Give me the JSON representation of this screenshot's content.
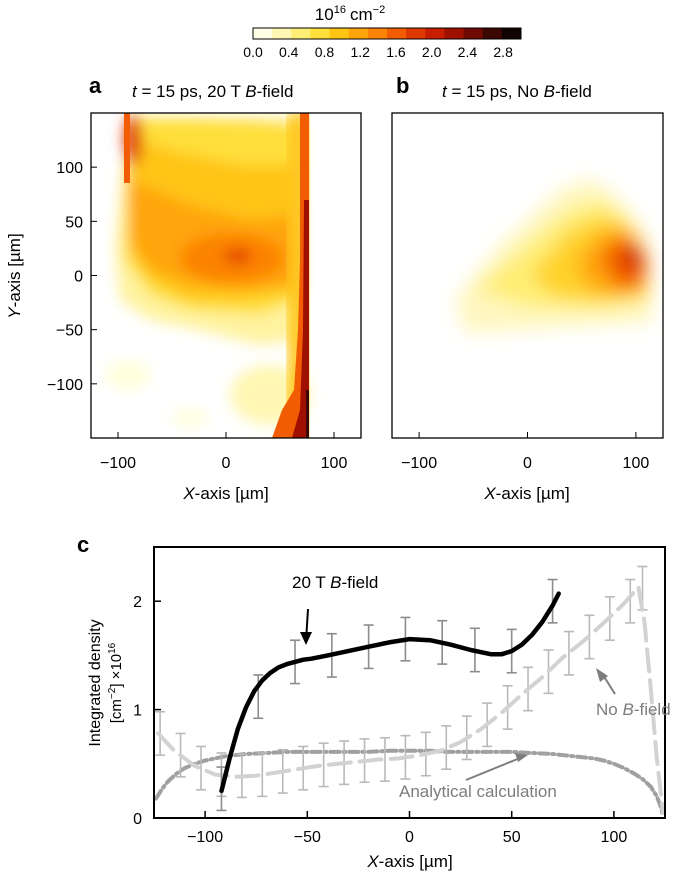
{
  "colorbar": {
    "title_base": "10",
    "title_exp": "16",
    "title_unit": "cm",
    "title_unit_exp": "−2",
    "ticks": [
      "0.0",
      "0.4",
      "0.8",
      "1.2",
      "1.6",
      "2.0",
      "2.4",
      "2.8"
    ],
    "range": [
      0.0,
      3.0
    ],
    "colors": [
      "#ffffe6",
      "#fff7b3",
      "#ffee75",
      "#ffdf3a",
      "#ffc414",
      "#ffa50a",
      "#fb8306",
      "#f25d03",
      "#e03802",
      "#c81d00",
      "#a01000",
      "#6e0a02",
      "#3a0703",
      "#0f0403"
    ]
  },
  "chart_data": [
    {
      "type": "heatmap",
      "panel_label": "a",
      "title_t": "t",
      "title_mid": " = 15 ps, 20 T ",
      "title_b": "B",
      "title_end": "-field",
      "xlabel_var": "X",
      "xlabel_unit": "-axis [µm]",
      "ylabel_var": "Y",
      "ylabel_unit": "-axis [µm]",
      "xlim": [
        -125,
        125
      ],
      "ylim": [
        -150,
        150
      ],
      "xticks": [
        "−100",
        "0",
        "100"
      ],
      "yticks": [
        "100",
        "50",
        "0",
        "−50",
        "−100"
      ],
      "plasma_x_extent": [
        -92,
        72
      ],
      "peak_density_point": [
        10,
        20
      ]
    },
    {
      "type": "heatmap",
      "panel_label": "b",
      "title_t": "t",
      "title_mid": " = 15 ps, No ",
      "title_b": "B",
      "title_end": "-field",
      "xlabel_var": "X",
      "xlabel_unit": "-axis [µm]",
      "xlim": [
        -125,
        125
      ],
      "ylim": [
        -150,
        150
      ],
      "xticks": [
        "−100",
        "0",
        "100"
      ],
      "peak_density_point": [
        95,
        20
      ]
    },
    {
      "type": "line",
      "panel_label": "c",
      "xlabel_var": "X",
      "xlabel_unit": "-axis [µm]",
      "ylabel_line1": "Integrated density",
      "ylabel_line2": "[cm",
      "ylabel_line2_exp": "−2",
      "ylabel_line2_end": "] ×10",
      "ylabel_line2_exp2": "16",
      "xlim": [
        -125,
        125
      ],
      "ylim": [
        0,
        2.5
      ],
      "xticks": [
        "−100",
        "−50",
        "0",
        "50",
        "100"
      ],
      "yticks": [
        "0",
        "1",
        "2"
      ],
      "series": [
        {
          "name": "20 T B-field",
          "annotation_mid": "20 T ",
          "annotation_b": "B",
          "annotation_end": "-field",
          "color": "#000000",
          "x": [
            -92,
            -88,
            -84,
            -80,
            -76,
            -72,
            -68,
            -64,
            -60,
            -56,
            -52,
            -48,
            -40,
            -30,
            -20,
            -10,
            0,
            10,
            20,
            30,
            40,
            45,
            50,
            55,
            60,
            65,
            70,
            73
          ],
          "y": [
            0.25,
            0.55,
            0.82,
            1.02,
            1.17,
            1.27,
            1.34,
            1.39,
            1.42,
            1.44,
            1.46,
            1.47,
            1.5,
            1.54,
            1.58,
            1.62,
            1.65,
            1.64,
            1.6,
            1.55,
            1.51,
            1.51,
            1.54,
            1.6,
            1.69,
            1.81,
            1.96,
            2.07
          ],
          "err_x": [
            -92,
            -74,
            -56,
            -38,
            -20,
            -2,
            16,
            32,
            50,
            70
          ],
          "err_y": [
            0.27,
            1.12,
            1.44,
            1.5,
            1.58,
            1.65,
            1.62,
            1.55,
            1.54,
            2.0
          ],
          "err": 0.2
        },
        {
          "name": "No B-field",
          "annotation_mid": "No ",
          "annotation_b": "B",
          "annotation_end": "-field",
          "color": "#d2d2d2",
          "x": [
            -123,
            -115,
            -105,
            -95,
            -85,
            -75,
            -65,
            -55,
            -45,
            -35,
            -25,
            -15,
            -5,
            5,
            15,
            25,
            35,
            45,
            55,
            65,
            75,
            85,
            95,
            105,
            112,
            115,
            118,
            121,
            124
          ],
          "y": [
            0.78,
            0.62,
            0.48,
            0.4,
            0.38,
            0.39,
            0.42,
            0.45,
            0.48,
            0.5,
            0.52,
            0.54,
            0.55,
            0.58,
            0.62,
            0.7,
            0.82,
            0.97,
            1.14,
            1.3,
            1.48,
            1.63,
            1.8,
            1.98,
            2.13,
            1.8,
            1.2,
            0.55,
            0.05
          ],
          "err_x": [
            -122,
            -112,
            -102,
            -92,
            -82,
            -72,
            -62,
            -52,
            -42,
            -32,
            -22,
            -12,
            -2,
            8,
            18,
            28,
            38,
            48,
            58,
            68,
            78,
            88,
            98,
            108,
            114
          ],
          "err_y": [
            0.78,
            0.58,
            0.46,
            0.4,
            0.39,
            0.4,
            0.43,
            0.46,
            0.49,
            0.51,
            0.53,
            0.54,
            0.56,
            0.59,
            0.65,
            0.74,
            0.86,
            1.02,
            1.19,
            1.35,
            1.52,
            1.67,
            1.84,
            2.0,
            2.12
          ],
          "err": 0.2
        },
        {
          "name": "Analytical calculation",
          "color": "#a0a0a0",
          "x": [
            -124,
            -121,
            -118,
            -114,
            -110,
            -105,
            -100,
            -95,
            -90,
            -80,
            -70,
            -60,
            -50,
            -40,
            -30,
            -20,
            -10,
            0,
            10,
            20,
            30,
            40,
            50,
            60,
            70,
            80,
            90,
            95,
            100,
            105,
            110,
            114,
            118,
            121,
            123,
            124
          ],
          "y": [
            0.18,
            0.27,
            0.34,
            0.41,
            0.46,
            0.5,
            0.53,
            0.55,
            0.57,
            0.59,
            0.6,
            0.61,
            0.61,
            0.61,
            0.61,
            0.61,
            0.62,
            0.62,
            0.62,
            0.61,
            0.61,
            0.61,
            0.61,
            0.6,
            0.59,
            0.57,
            0.55,
            0.53,
            0.5,
            0.46,
            0.41,
            0.36,
            0.29,
            0.2,
            0.1,
            0.02
          ]
        }
      ],
      "analytical_label": "Analytical calculation"
    }
  ]
}
